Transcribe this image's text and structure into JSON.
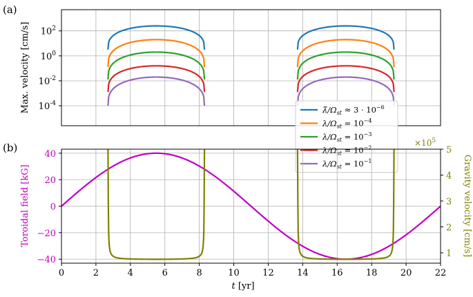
{
  "chart_data": [
    {
      "panel": "(a)",
      "type": "line",
      "ylabel": "Max. velocity [cm/s]",
      "yscale": "log",
      "xlim": [
        0,
        22
      ],
      "ylim_log10": [
        -5.6,
        3.7
      ],
      "yticks": [
        {
          "value": 2,
          "label": "10",
          "exp": "2"
        },
        {
          "value": 0,
          "label": "10",
          "exp": "0"
        },
        {
          "value": -2,
          "label": "10",
          "exp": "-2"
        },
        {
          "value": -4,
          "label": "10",
          "exp": "-4"
        }
      ],
      "grid": true,
      "legend_position": "lower-right",
      "windows": [
        [
          2.7,
          8.3
        ],
        [
          13.7,
          19.3
        ]
      ],
      "series": [
        {
          "name": "λ̃/Ω_st ≈ 3·10⁻⁶",
          "legend_main": "λ̃/Ω",
          "legend_sub": "st",
          "legend_rest": " ≈ 3 · 10",
          "legend_exp": "−6",
          "color": "#1f77b4",
          "peak_log10": 2.4,
          "edge_log10": 0.5
        },
        {
          "name": "λ/Ω_st = 10⁻⁴",
          "legend_main": "λ/Ω",
          "legend_sub": "st",
          "legend_rest": " = 10",
          "legend_exp": "−4",
          "color": "#ff7f0e",
          "peak_log10": 1.3,
          "edge_log10": -0.9
        },
        {
          "name": "λ/Ω_st = 10⁻³",
          "legend_main": "λ/Ω",
          "legend_sub": "st",
          "legend_rest": " = 10",
          "legend_exp": "−3",
          "color": "#2ca02c",
          "peak_log10": 0.3,
          "edge_log10": -1.9
        },
        {
          "name": "λ/Ω_st = 10⁻²",
          "legend_main": "λ/Ω",
          "legend_sub": "st",
          "legend_rest": " = 10",
          "legend_exp": "−2",
          "color": "#d62728",
          "peak_log10": -0.8,
          "edge_log10": -2.9
        },
        {
          "name": "λ/Ω_st = 10⁻¹",
          "legend_main": "λ/Ω",
          "legend_sub": "st",
          "legend_rest": " = 10",
          "legend_exp": "−1",
          "color": "#9467bd",
          "peak_log10": -1.7,
          "edge_log10": -4.0
        }
      ]
    },
    {
      "panel": "(b)",
      "type": "line",
      "xlabel_main": "t",
      "xlabel_unit": " [yr]",
      "xlim": [
        0,
        22
      ],
      "xticks": [
        0,
        2,
        4,
        6,
        8,
        10,
        12,
        14,
        16,
        18,
        20,
        22
      ],
      "ylabel_left": "Toroidal field [kG]",
      "ylim_left": [
        -43,
        43
      ],
      "yticks_left": [
        40,
        20,
        0,
        -20,
        -40
      ],
      "ylabel_right": "Gravity velocity [cm/s]",
      "ylim_right": [
        0.6,
        5.0
      ],
      "yticks_right": [
        1,
        2,
        3,
        4,
        5
      ],
      "right_multiplier": "×10",
      "right_multiplier_exp": "5",
      "grid": true,
      "series": [
        {
          "name": "Toroidal field",
          "axis": "left",
          "color": "#c000c0",
          "amplitude": 40,
          "period": 22
        },
        {
          "name": "Gravity velocity",
          "axis": "right",
          "color": "#808000",
          "windows": [
            [
              2.7,
              8.3
            ],
            [
              13.7,
              19.3
            ]
          ],
          "min_value": 0.75
        }
      ]
    }
  ]
}
